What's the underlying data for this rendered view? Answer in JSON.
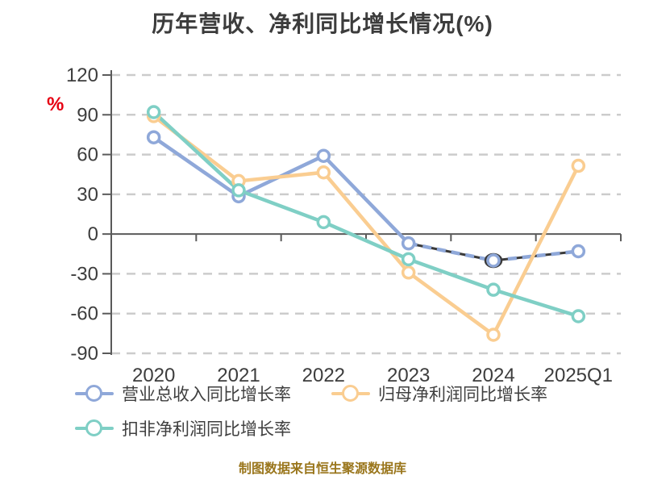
{
  "title": "历年营收、净利同比增长情况(%)",
  "y_axis_unit": "%",
  "footer_note": "制图数据来自恒生聚源数据库",
  "colors": {
    "title_text": "#3c3c3c",
    "axis_line": "#5a5a5a",
    "axis_label": "#3d3d3d",
    "gridline": "#cccccc",
    "unit_red": "#e60012",
    "footer_gold": "#9a761c",
    "marker_fill": "#ffffff",
    "dark_artifact": "#3a3a3a"
  },
  "chart_data": {
    "type": "line",
    "title": "历年营收、净利同比增长情况(%)",
    "categories": [
      "2020",
      "2021",
      "2022",
      "2023",
      "2024",
      "2025Q1"
    ],
    "series": [
      {
        "key": "revenue-yoy",
        "name": "营业总收入同比增长率",
        "color": "#8fa8d9",
        "values": [
          73,
          28.5,
          59,
          -7,
          -20,
          -13
        ],
        "dash_from": 3
      },
      {
        "key": "net-profit-yoy",
        "name": "归母净利润同比增长率",
        "color": "#facd91",
        "values": [
          89,
          40,
          46.5,
          -29,
          -76,
          51.5
        ]
      },
      {
        "key": "deducted-net-profit-yoy",
        "name": "扣非净利润同比增长率",
        "color": "#7fcfc5",
        "values": [
          92,
          33,
          9,
          -19,
          -42,
          -62
        ]
      }
    ],
    "ylabel": "%",
    "xlabel": "",
    "ylim": [
      -90,
      120
    ],
    "ytick_step": 30,
    "yticks": [
      120,
      90,
      60,
      30,
      0,
      -30,
      -60,
      -90
    ],
    "grid": "dashed-horizontal",
    "legend_position": "bottom-left"
  }
}
